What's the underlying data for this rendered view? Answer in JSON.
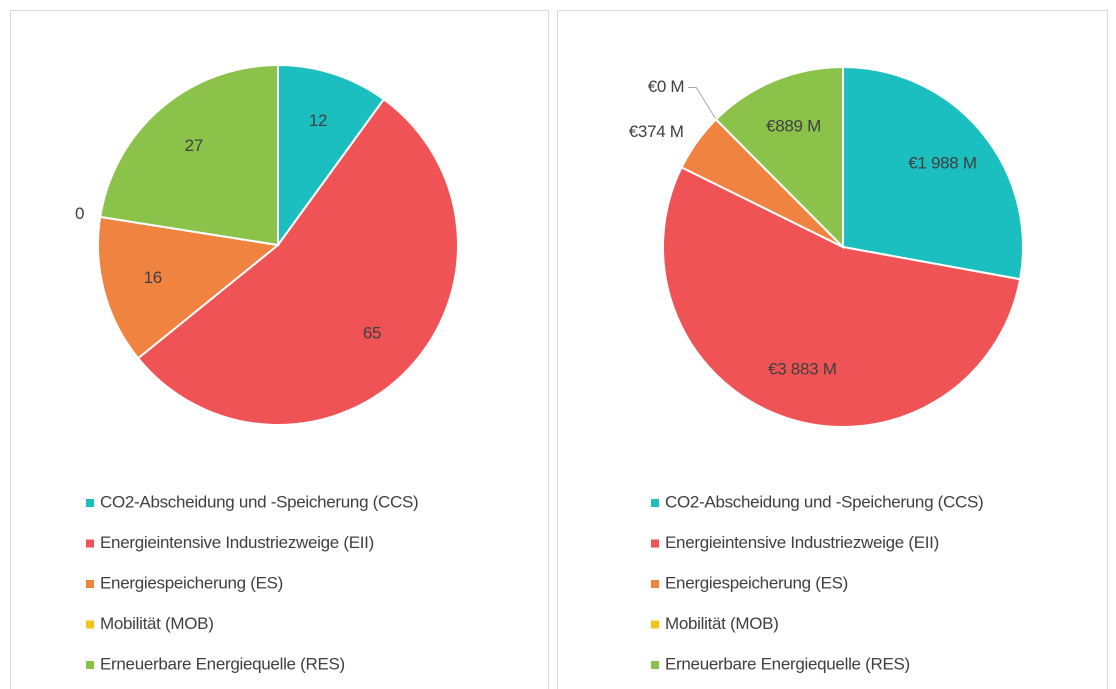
{
  "chart_data": [
    {
      "type": "pie",
      "categories": [
        "CO2-Abscheidung und -Speicherung (CCS)",
        "Energieintensive Industriezweige (EII)",
        "Energiespeicherung (ES)",
        "Mobilität (MOB)",
        "Erneuerbare Energiequelle (RES)"
      ],
      "values": [
        12,
        65,
        16,
        0,
        27
      ],
      "colors": [
        "#1cbfbf",
        "#ef5355",
        "#f08340",
        "#f5c31c",
        "#8bc34a"
      ],
      "legend": "bottom"
    },
    {
      "type": "pie",
      "categories": [
        "CO2-Abscheidung und -Speicherung (CCS)",
        "Energieintensive Industriezweige (EII)",
        "Energiespeicherung (ES)",
        "Mobilität (MOB)",
        "Erneuerbare Energiequelle (RES)"
      ],
      "values": [
        1988,
        3883,
        374,
        0,
        889
      ],
      "value_labels": [
        "€1 988 M",
        "€3 883 M",
        "€374 M",
        "€0 M",
        "€889 M"
      ],
      "colors": [
        "#1cbfbf",
        "#ef5355",
        "#f08340",
        "#f5c31c",
        "#8bc34a"
      ],
      "legend": "bottom"
    }
  ]
}
